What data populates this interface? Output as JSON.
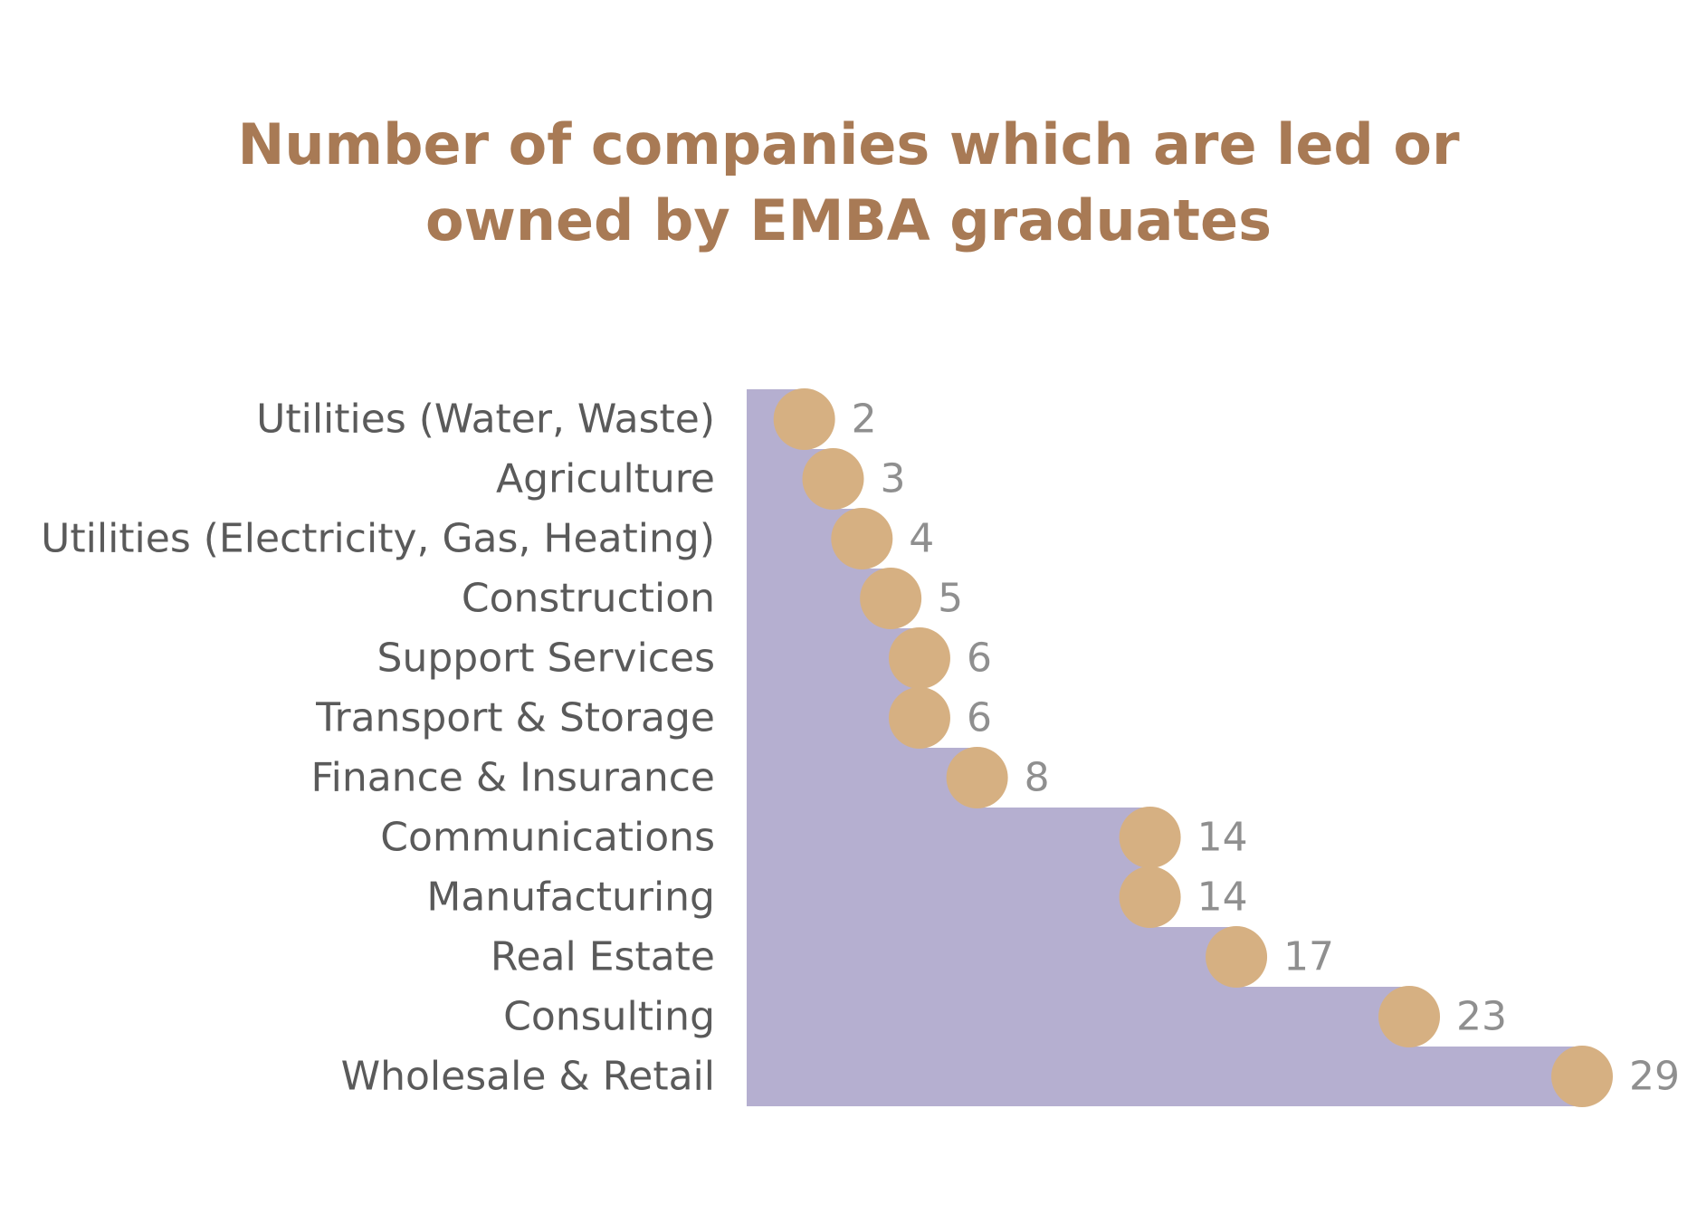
{
  "chart_data": {
    "type": "area",
    "title_line1": "Number of companies which are led or",
    "title_line2": "owned by EMBA graduates",
    "categories": [
      "Utilities (Water, Waste)",
      "Agriculture",
      "Utilities (Electricity, Gas, Heating)",
      "Construction",
      "Support Services",
      "Transport & Storage",
      "Finance & Insurance",
      "Communications",
      "Manufacturing",
      "Real Estate",
      "Consulting",
      "Wholesale & Retail"
    ],
    "values": [
      2,
      3,
      4,
      5,
      6,
      6,
      8,
      14,
      14,
      17,
      23,
      29
    ],
    "xlim": [
      0,
      29
    ],
    "grid": false,
    "colors": {
      "title": "#a87a55",
      "area": "#b5afd0",
      "marker": "#d6b082",
      "category_label": "#5a5a5a",
      "value_label": "#8f8f8f"
    }
  }
}
